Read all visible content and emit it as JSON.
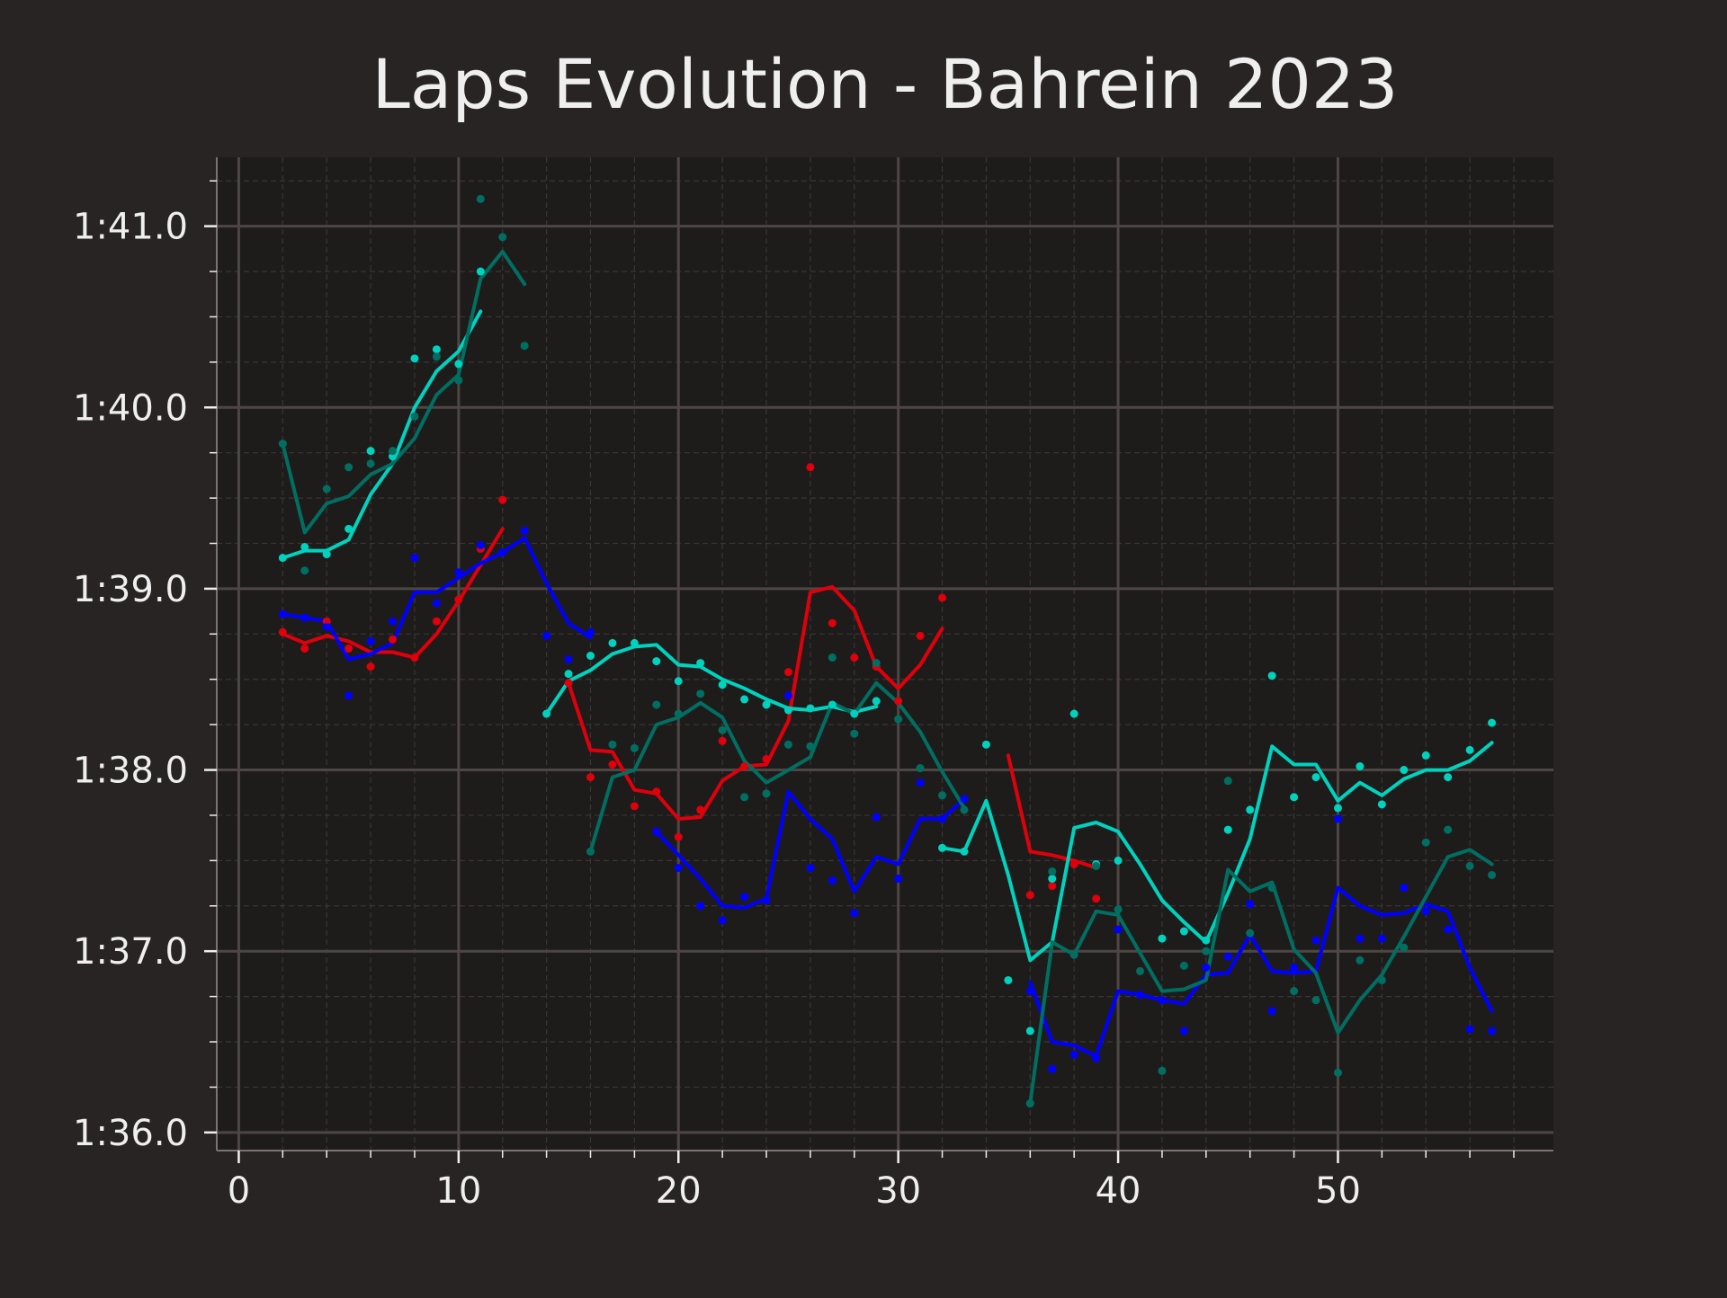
{
  "chart_data": {
    "type": "line",
    "title": "Laps Evolution - Bahrein 2023",
    "xlabel": "",
    "ylabel": "",
    "xlim": [
      -1,
      59.8
    ],
    "ylim": [
      95.9,
      101.38
    ],
    "x_ticks": [
      0,
      10,
      20,
      30,
      40,
      50
    ],
    "x_tick_labels": [
      "0",
      "10",
      "20",
      "30",
      "40",
      "50"
    ],
    "y_ticks": [
      96,
      97,
      98,
      99,
      100,
      101
    ],
    "y_tick_labels": [
      "1:36.0",
      "1:37.0",
      "1:38.0",
      "1:39.0",
      "1:40.0",
      "1:41.0"
    ],
    "y_unit": "seconds",
    "grid": true,
    "legend": false,
    "colors": {
      "background": "#272423",
      "plot_bg": "#1e1c1b",
      "grid_major": "#4d4644",
      "grid_minor": "#3a3534",
      "text": "#f0eff0",
      "spine": "#7a7372"
    },
    "series": [
      {
        "color": "#e0000b",
        "segments": [
          {
            "x": [
              2,
              3,
              4,
              5,
              6,
              7,
              8,
              9,
              10,
              11,
              12
            ],
            "y": [
              98.75,
              98.7,
              98.74,
              98.71,
              98.65,
              98.65,
              98.62,
              98.75,
              98.93,
              99.13,
              99.33
            ]
          },
          {
            "x": [
              15,
              16,
              17,
              18,
              19,
              20,
              21,
              22,
              23,
              24,
              25,
              26,
              27,
              28,
              29,
              30,
              31,
              32
            ],
            "y": [
              98.48,
              98.11,
              98.1,
              97.89,
              97.87,
              97.73,
              97.74,
              97.94,
              98.02,
              98.03,
              98.27,
              98.98,
              99.01,
              98.88,
              98.57,
              98.45,
              98.58,
              98.78
            ]
          },
          {
            "x": [
              35,
              36,
              37,
              38,
              39
            ],
            "y": [
              98.08,
              97.55,
              97.53,
              97.5,
              97.46
            ]
          }
        ],
        "points": {
          "x": [
            2,
            3,
            4,
            5,
            6,
            7,
            8,
            9,
            10,
            11,
            12,
            15,
            16,
            17,
            18,
            19,
            20,
            21,
            22,
            23,
            24,
            25,
            26,
            27,
            28,
            29,
            30,
            31,
            32,
            36,
            37,
            38,
            39
          ],
          "y": [
            98.76,
            98.67,
            98.82,
            98.67,
            98.57,
            98.72,
            98.62,
            98.82,
            98.94,
            99.22,
            99.49,
            98.48,
            97.96,
            98.03,
            97.8,
            97.88,
            97.63,
            97.78,
            98.16,
            98.02,
            98.06,
            98.54,
            99.67,
            98.81,
            98.62,
            98.57,
            98.38,
            98.74,
            98.95,
            97.31,
            97.36,
            97.48,
            97.29
          ]
        }
      },
      {
        "color": "#0000ff",
        "segments": [
          {
            "x": [
              2,
              3,
              4,
              5,
              6,
              7,
              8,
              9,
              10,
              11,
              12,
              13,
              14,
              15,
              16
            ],
            "y": [
              98.86,
              98.84,
              98.82,
              98.61,
              98.64,
              98.7,
              98.98,
              98.98,
              99.06,
              99.14,
              99.2,
              99.28,
              99.03,
              98.81,
              98.73
            ]
          },
          {
            "x": [
              19,
              20,
              21,
              22,
              23,
              24,
              25,
              26,
              27,
              28,
              29,
              30,
              31,
              32,
              33
            ],
            "y": [
              97.66,
              97.53,
              97.4,
              97.25,
              97.24,
              97.29,
              97.88,
              97.73,
              97.62,
              97.33,
              97.52,
              97.48,
              97.73,
              97.73,
              97.84
            ]
          },
          {
            "x": [
              36,
              37,
              38,
              39,
              40,
              41,
              42,
              43,
              44,
              45,
              46,
              47,
              48,
              49,
              50,
              51,
              52,
              53,
              54,
              55,
              56,
              57
            ],
            "y": [
              96.83,
              96.5,
              96.48,
              96.42,
              96.78,
              96.76,
              96.73,
              96.71,
              96.87,
              96.88,
              97.09,
              96.89,
              96.88,
              96.89,
              97.35,
              97.25,
              97.2,
              97.21,
              97.26,
              97.22,
              96.91,
              96.67
            ]
          }
        ],
        "points": {
          "x": [
            2,
            3,
            4,
            5,
            6,
            7,
            8,
            9,
            10,
            11,
            12,
            13,
            14,
            15,
            16,
            19,
            20,
            21,
            22,
            23,
            24,
            25,
            26,
            27,
            28,
            29,
            30,
            31,
            32,
            33,
            36,
            37,
            38,
            39,
            40,
            41,
            42,
            43,
            44,
            45,
            46,
            47,
            48,
            49,
            50,
            51,
            52,
            53,
            54,
            55,
            56,
            57
          ],
          "y": [
            98.86,
            98.84,
            98.79,
            98.41,
            98.71,
            98.82,
            99.17,
            98.92,
            99.09,
            99.24,
            99.2,
            99.32,
            98.74,
            98.61,
            98.76,
            97.66,
            97.46,
            97.25,
            97.17,
            97.3,
            97.28,
            98.41,
            97.46,
            97.39,
            97.21,
            97.74,
            97.4,
            97.93,
            97.73,
            97.84,
            96.78,
            96.35,
            96.43,
            96.41,
            97.12,
            96.76,
            96.73,
            96.56,
            96.91,
            96.97,
            97.26,
            96.67,
            96.91,
            97.06,
            97.73,
            97.07,
            97.07,
            97.35,
            97.22,
            97.12,
            96.57,
            96.56
          ]
        }
      },
      {
        "color": "#00d2be",
        "segments": [
          {
            "x": [
              2,
              3,
              4,
              5,
              6,
              7,
              8,
              9,
              10,
              11
            ],
            "y": [
              99.17,
              99.21,
              99.21,
              99.27,
              99.52,
              99.69,
              100.0,
              100.2,
              100.31,
              100.53
            ]
          },
          {
            "x": [
              14,
              15,
              16,
              17,
              18,
              19,
              20,
              21,
              22,
              23,
              24,
              25,
              26,
              27,
              28,
              29
            ],
            "y": [
              98.31,
              98.49,
              98.55,
              98.64,
              98.68,
              98.69,
              98.58,
              98.57,
              98.5,
              98.45,
              98.39,
              98.34,
              98.33,
              98.35,
              98.32,
              98.35
            ]
          },
          {
            "x": [
              32,
              33,
              34,
              35,
              36,
              37,
              38,
              39,
              40,
              41,
              42,
              43,
              44,
              45,
              46,
              47,
              48,
              49,
              50,
              51,
              52,
              53,
              54,
              55,
              56,
              57
            ],
            "y": [
              97.57,
              97.55,
              97.83,
              97.42,
              96.95,
              97.05,
              97.68,
              97.71,
              97.66,
              97.48,
              97.28,
              97.16,
              97.05,
              97.32,
              97.62,
              98.13,
              98.03,
              98.03,
              97.83,
              97.93,
              97.86,
              97.95,
              98.0,
              98.0,
              98.05,
              98.15
            ]
          }
        ],
        "points": {
          "x": [
            2,
            3,
            4,
            5,
            6,
            7,
            8,
            9,
            10,
            11,
            14,
            15,
            16,
            17,
            18,
            19,
            20,
            21,
            22,
            23,
            24,
            25,
            26,
            27,
            28,
            29,
            32,
            33,
            34,
            35,
            36,
            37,
            38,
            39,
            40,
            42,
            43,
            44,
            45,
            46,
            47,
            48,
            49,
            50,
            51,
            52,
            53,
            54,
            55,
            56,
            57
          ],
          "y": [
            99.17,
            99.23,
            99.19,
            99.33,
            99.76,
            99.73,
            100.27,
            100.32,
            100.24,
            100.75,
            98.31,
            98.53,
            98.63,
            98.7,
            98.7,
            98.6,
            98.49,
            98.59,
            98.47,
            98.39,
            98.36,
            98.33,
            98.34,
            98.36,
            98.31,
            98.38,
            97.57,
            97.55,
            98.14,
            96.84,
            96.56,
            97.4,
            98.31,
            97.48,
            97.5,
            97.07,
            97.11,
            97.06,
            97.67,
            97.78,
            98.52,
            97.85,
            97.96,
            97.79,
            98.02,
            97.81,
            98.0,
            98.08,
            97.96,
            98.11,
            98.26
          ]
        }
      },
      {
        "color": "#006f62",
        "segments": [
          {
            "x": [
              2,
              3,
              4,
              5,
              6,
              7,
              8,
              9,
              10,
              11,
              12,
              13
            ],
            "y": [
              99.8,
              99.31,
              99.47,
              99.51,
              99.63,
              99.69,
              99.83,
              100.07,
              100.18,
              100.71,
              100.86,
              100.68
            ]
          },
          {
            "x": [
              16,
              17,
              18,
              19,
              20,
              21,
              22,
              23,
              24,
              25,
              26,
              27,
              28,
              29,
              30,
              31,
              32,
              33
            ],
            "y": [
              97.55,
              97.96,
              98.0,
              98.25,
              98.29,
              98.37,
              98.29,
              98.05,
              97.93,
              98.0,
              98.07,
              98.37,
              98.31,
              98.48,
              98.37,
              98.21,
              97.99,
              97.79
            ]
          },
          {
            "x": [
              36,
              37,
              38,
              39,
              40,
              41,
              42,
              43,
              44,
              45,
              46,
              47,
              48,
              49,
              50,
              51,
              52,
              53,
              54,
              55,
              56,
              57
            ],
            "y": [
              96.16,
              97.05,
              96.98,
              97.22,
              97.2,
              96.99,
              96.78,
              96.79,
              96.84,
              97.45,
              97.33,
              97.38,
              97.01,
              96.88,
              96.55,
              96.73,
              96.87,
              97.08,
              97.3,
              97.52,
              97.56,
              97.48
            ]
          }
        ],
        "points": {
          "x": [
            2,
            3,
            4,
            5,
            6,
            7,
            8,
            9,
            10,
            11,
            12,
            13,
            16,
            17,
            18,
            19,
            20,
            21,
            22,
            23,
            24,
            25,
            26,
            27,
            28,
            29,
            30,
            31,
            32,
            33,
            36,
            37,
            38,
            39,
            40,
            41,
            42,
            43,
            44,
            45,
            46,
            47,
            48,
            49,
            50,
            51,
            52,
            53,
            54,
            55,
            56,
            57
          ],
          "y": [
            99.8,
            99.1,
            99.55,
            99.67,
            99.69,
            99.76,
            99.95,
            100.28,
            100.15,
            101.15,
            100.94,
            100.34,
            97.55,
            98.14,
            98.12,
            98.36,
            98.31,
            98.42,
            98.22,
            97.85,
            97.87,
            98.14,
            98.13,
            98.62,
            98.2,
            98.59,
            98.28,
            98.01,
            97.86,
            97.78,
            96.16,
            97.44,
            96.98,
            97.47,
            97.23,
            96.89,
            96.34,
            96.92,
            97.0,
            97.94,
            97.1,
            97.35,
            96.78,
            96.73,
            96.33,
            96.95,
            96.84,
            97.02,
            97.6,
            97.67,
            97.47,
            97.42
          ]
        }
      }
    ]
  }
}
